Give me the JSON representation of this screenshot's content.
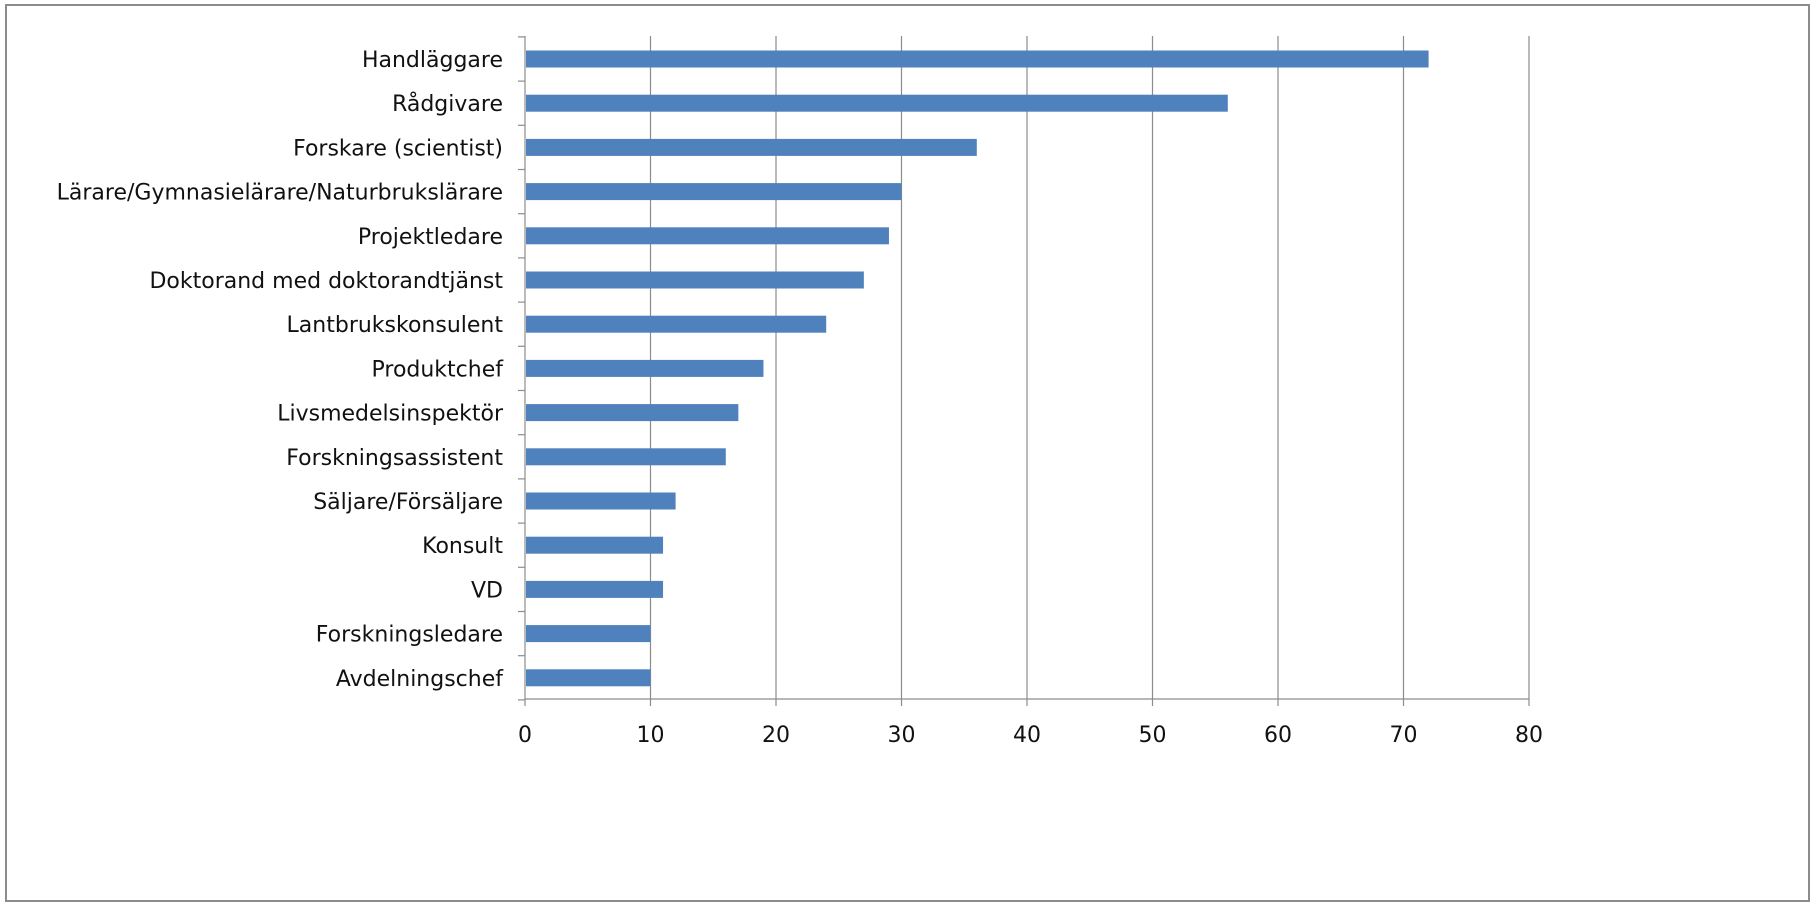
{
  "chart_data": {
    "type": "bar",
    "orientation": "horizontal",
    "title": "",
    "xlabel": "",
    "ylabel": "",
    "categories": [
      "Handläggare",
      "Rådgivare",
      "Forskare (scientist)",
      "Lärare/Gymnasielärare/Naturbrukslärare",
      "Projektledare",
      "Doktorand med doktorandtjänst",
      "Lantbrukskonsulent",
      "Produktchef",
      "Livsmedelsinspektör",
      "Forskningsassistent",
      "Säljare/Försäljare",
      "Konsult",
      "VD",
      "Forskningsledare",
      "Avdelningschef"
    ],
    "values": [
      72,
      56,
      36,
      30,
      29,
      27,
      24,
      19,
      17,
      16,
      12,
      11,
      11,
      10,
      10
    ],
    "xlim": [
      0,
      80
    ],
    "xticks": [
      0,
      10,
      20,
      30,
      40,
      50,
      60,
      70,
      80
    ],
    "grid": "vertical",
    "legend": "none",
    "bar_color": "#4f81bd",
    "grid_color": "#8c8c8c",
    "axis_color": "#8c8c8c"
  }
}
